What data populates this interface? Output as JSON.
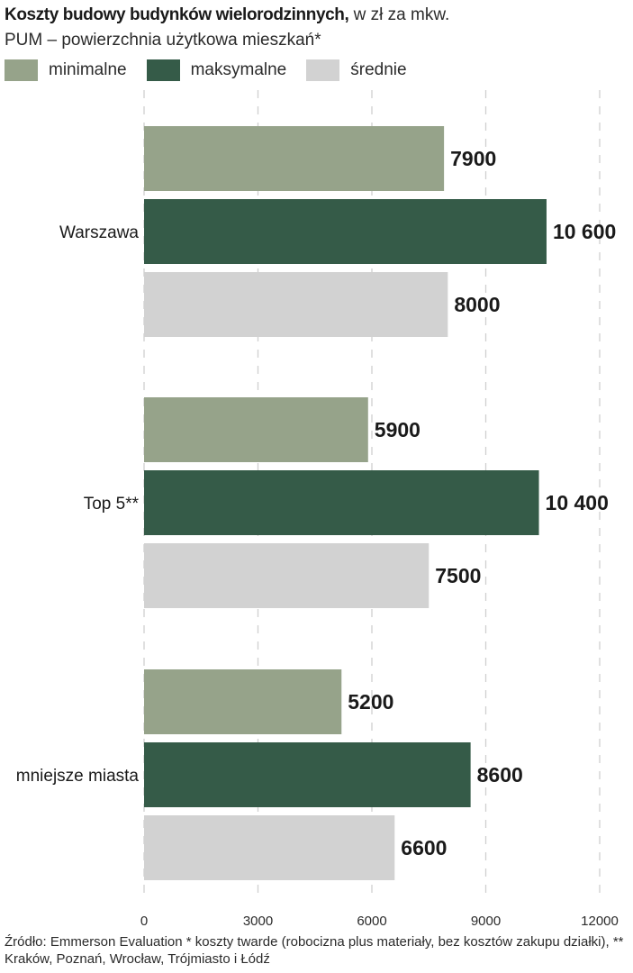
{
  "header": {
    "title_bold": "Koszty budowy budynków wielorodzinnych,",
    "title_rest": " w zł za mkw.",
    "subtitle": "PUM – powierzchnia użytkowa mieszkań*"
  },
  "legend": [
    {
      "label": "minimalne",
      "color": "#96a38a"
    },
    {
      "label": "maksymalne",
      "color": "#355b48"
    },
    {
      "label": "średnie",
      "color": "#d2d2d2"
    }
  ],
  "chart_data": {
    "type": "bar",
    "orientation": "horizontal",
    "categories": [
      "Warszawa",
      "Top 5**",
      "mniejsze miasta"
    ],
    "series": [
      {
        "name": "minimalne",
        "color": "#96a38a",
        "values": [
          7900,
          5900,
          5200
        ],
        "labels": [
          "7900",
          "5900",
          "5200"
        ]
      },
      {
        "name": "maksymalne",
        "color": "#355b48",
        "values": [
          10600,
          10400,
          8600
        ],
        "labels": [
          "10 600",
          "10 400",
          "8600"
        ]
      },
      {
        "name": "średnie",
        "color": "#d2d2d2",
        "values": [
          8000,
          7500,
          6600
        ],
        "labels": [
          "8000",
          "7500",
          "6600"
        ]
      }
    ],
    "xlim": [
      0,
      12000
    ],
    "xticks": [
      0,
      3000,
      6000,
      9000,
      12000
    ],
    "xticklabels": [
      "0",
      "3000",
      "6000",
      "9000",
      "12000"
    ],
    "grid": "dashed vertical",
    "legend_position": "top-left"
  },
  "source": "Źródło: Emmerson Evaluation * koszty twarde (robocizna plus materiały, bez kosztów zakupu działki), ** Kraków, Poznań, Wrocław, Trójmiasto i Łódź"
}
